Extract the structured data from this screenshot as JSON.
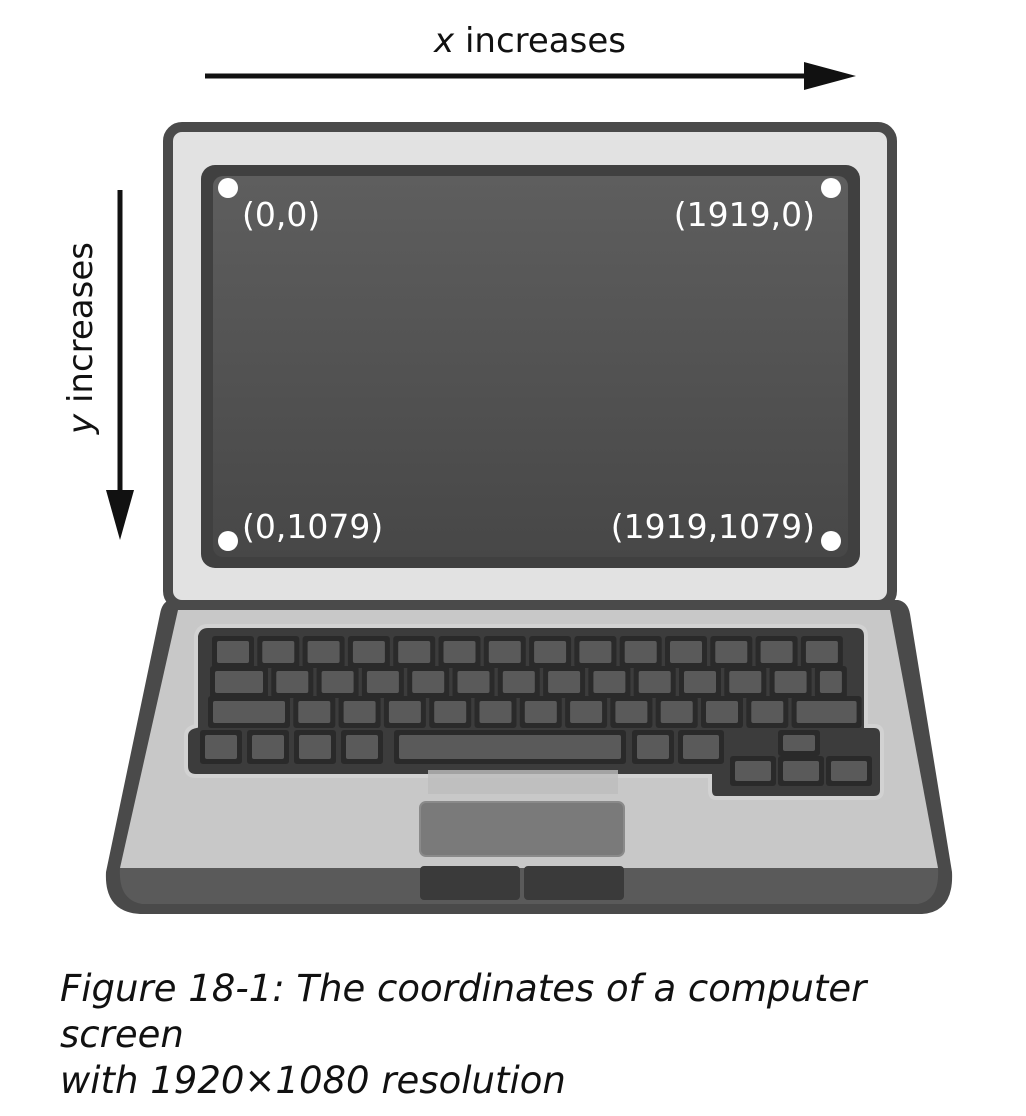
{
  "axes": {
    "x_variable": "x",
    "x_label": " increases",
    "y_variable": "y",
    "y_label": " increases"
  },
  "screen": {
    "corners": {
      "top_left": "(0,0)",
      "top_right": "(1919,0)",
      "bottom_left": "(0,1079)",
      "bottom_right": "(1919,1079)"
    }
  },
  "caption": {
    "line1": "Figure 18-1: The coordinates of a computer screen",
    "line2": "with 1920×1080 resolution"
  }
}
